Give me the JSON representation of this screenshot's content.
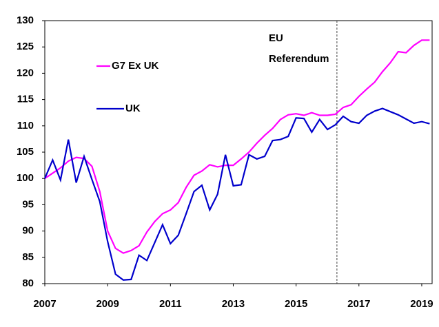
{
  "chart_data": {
    "type": "line",
    "x": [
      2007,
      2007.25,
      2007.5,
      2007.75,
      2008,
      2008.25,
      2008.5,
      2008.75,
      2009,
      2009.25,
      2009.5,
      2009.75,
      2010,
      2010.25,
      2010.5,
      2010.75,
      2011,
      2011.25,
      2011.5,
      2011.75,
      2012,
      2012.25,
      2012.5,
      2012.75,
      2013,
      2013.25,
      2013.5,
      2013.75,
      2014,
      2014.25,
      2014.5,
      2014.75,
      2015,
      2015.25,
      2015.5,
      2015.75,
      2016,
      2016.25,
      2016.5,
      2016.75,
      2017,
      2017.25,
      2017.5,
      2017.75,
      2018,
      2018.25,
      2018.5,
      2018.75,
      2019,
      2019.25
    ],
    "series": [
      {
        "name": "G7 Ex UK",
        "color": "#ff00ff",
        "values": [
          100,
          101,
          102,
          103.3,
          104,
          103.8,
          102.3,
          97.5,
          90,
          86.7,
          85.8,
          86.3,
          87.2,
          89.8,
          91.8,
          93.3,
          94,
          95.4,
          98.3,
          100.6,
          101.4,
          102.6,
          102.2,
          102.5,
          102.5,
          103.7,
          105,
          106.7,
          108.2,
          109.5,
          111.2,
          112.1,
          112.3,
          112,
          112.5,
          112,
          112,
          112.2,
          113.5,
          114,
          115.6,
          117,
          118.3,
          120.3,
          122,
          124.1,
          123.9,
          125.3,
          126.3,
          126.3
        ]
      },
      {
        "name": "UK",
        "color": "#0000cc",
        "values": [
          100,
          103.5,
          99.7,
          107.4,
          99.2,
          104.2,
          99.8,
          95.6,
          88,
          81.8,
          80.7,
          80.8,
          85.4,
          84.4,
          87.8,
          91.2,
          87.6,
          89.2,
          93.3,
          97.5,
          98.7,
          94,
          97,
          104.5,
          98.6,
          98.8,
          104.5,
          103.7,
          104.2,
          107.2,
          107.4,
          108,
          111.5,
          111.4,
          108.8,
          111.2,
          109.3,
          110.2,
          111.8,
          110.8,
          110.5,
          112,
          112.8,
          113.3,
          112.7,
          112.1,
          111.3,
          110.5,
          110.8,
          110.4
        ]
      }
    ],
    "xlim": [
      2007,
      2019.33
    ],
    "xticks": [
      2007,
      2009,
      2011,
      2013,
      2015,
      2017,
      2019
    ],
    "ylim": [
      80,
      130
    ],
    "yticks": [
      80,
      85,
      90,
      95,
      100,
      105,
      110,
      115,
      120,
      125,
      130
    ],
    "grid": false,
    "annotation": {
      "lines": [
        "EU",
        "Referendum"
      ],
      "x": 2016.3
    }
  }
}
